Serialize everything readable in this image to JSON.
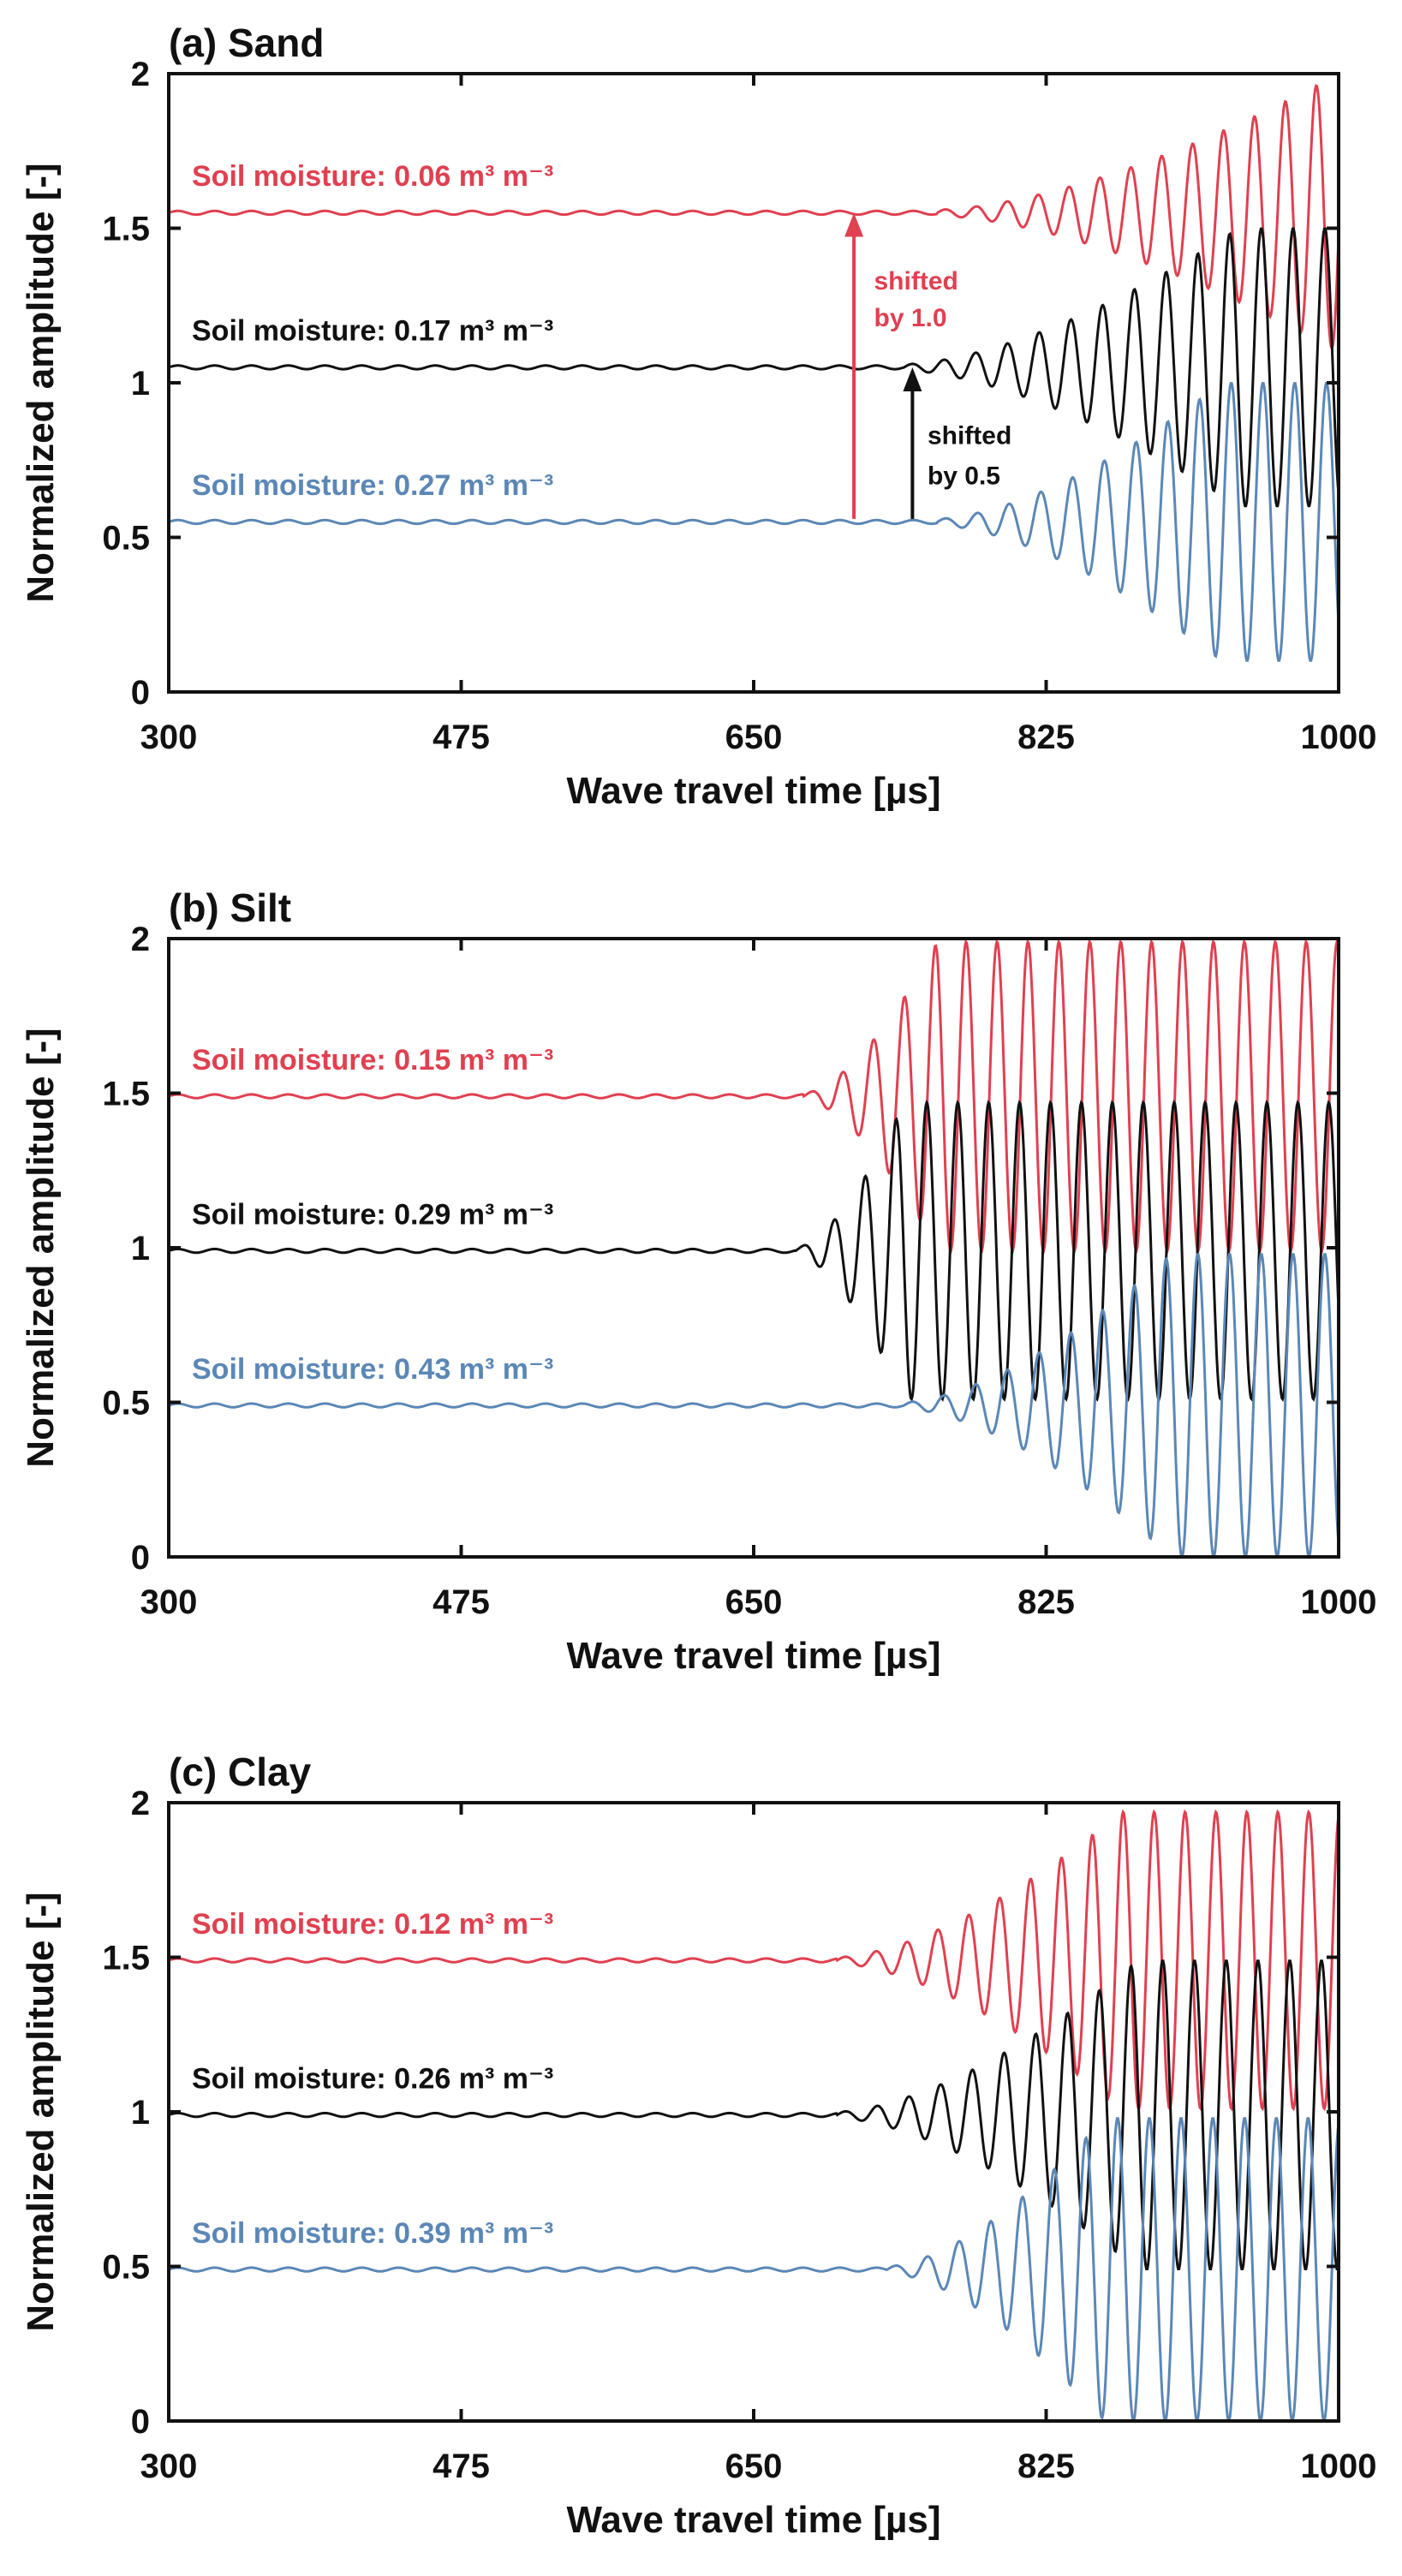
{
  "colors": {
    "red": "#e04050",
    "black": "#111111",
    "blue": "#5b87b6"
  },
  "chart_data": [
    {
      "type": "line",
      "title": "(a) Sand",
      "xlabel": "Wave travel time [µs]",
      "ylabel": "Normalized amplitude [-]",
      "xlim": [
        300,
        1000
      ],
      "ylim": [
        0,
        2
      ],
      "xticks": [
        300,
        475,
        650,
        825,
        1000
      ],
      "yticks": [
        0,
        0.5,
        1,
        1.5,
        2
      ],
      "xtick_labels": [
        "300",
        "475",
        "650",
        "825",
        "1000"
      ],
      "ytick_labels": [
        "0",
        "0.5",
        "1",
        "1.5",
        "2"
      ],
      "series": [
        {
          "name": "Soil moisture: 0.06",
          "unit": "m³ m⁻³",
          "color": "red",
          "baseline": 1.55,
          "onset": 760,
          "grow_end": 1000,
          "max_amp": 0.45,
          "period": 18.5,
          "label_y": 1.67
        },
        {
          "name": "Soil moisture: 0.17",
          "unit": "m³ m⁻³",
          "color": "black",
          "baseline": 1.05,
          "onset": 740,
          "grow_end": 940,
          "max_amp": 0.45,
          "period": 19,
          "label_y": 1.17
        },
        {
          "name": "Soil moisture: 0.27",
          "unit": "m³ m⁻³",
          "color": "blue",
          "baseline": 0.55,
          "onset": 760,
          "grow_end": 930,
          "max_amp": 0.45,
          "period": 19,
          "label_y": 0.67
        }
      ],
      "annotations": [
        {
          "color": "red",
          "x": 710,
          "y_from": 0.56,
          "y_to": 1.55,
          "lines": [
            "shifted",
            "by 1.0"
          ],
          "text_x": 722,
          "text_y": [
            1.33,
            1.21
          ]
        },
        {
          "color": "black",
          "x": 745,
          "y_from": 0.56,
          "y_to": 1.05,
          "lines": [
            "shifted",
            "by 0.5"
          ],
          "text_x": 754,
          "text_y": [
            0.83,
            0.7
          ]
        }
      ]
    },
    {
      "type": "line",
      "title": "(b) Silt",
      "xlabel": "Wave travel time [µs]",
      "ylabel": "Normalized amplitude [-]",
      "xlim": [
        300,
        1000
      ],
      "ylim": [
        0,
        2
      ],
      "xticks": [
        300,
        475,
        650,
        825,
        1000
      ],
      "yticks": [
        0,
        0.5,
        1,
        1.5,
        2
      ],
      "xtick_labels": [
        "300",
        "475",
        "650",
        "825",
        "1000"
      ],
      "ytick_labels": [
        "0",
        "0.5",
        "1",
        "1.5",
        "2"
      ],
      "series": [
        {
          "name": "Soil moisture: 0.15",
          "unit": "m³ m⁻³",
          "color": "red",
          "baseline": 1.49,
          "onset": 680,
          "grow_end": 760,
          "max_amp": 0.5,
          "period": 18.5,
          "label_y": 1.61
        },
        {
          "name": "Soil moisture: 0.29",
          "unit": "m³ m⁻³",
          "color": "black",
          "baseline": 0.99,
          "onset": 675,
          "grow_end": 740,
          "max_amp": 0.48,
          "period": 18.5,
          "label_y": 1.11
        },
        {
          "name": "Soil moisture: 0.43",
          "unit": "m³ m⁻³",
          "color": "blue",
          "baseline": 0.49,
          "onset": 740,
          "grow_end": 900,
          "max_amp": 0.49,
          "period": 19,
          "label_y": 0.61
        }
      ],
      "annotations": []
    },
    {
      "type": "line",
      "title": "(c) Clay",
      "xlabel": "Wave travel time [µs]",
      "ylabel": "Normalized amplitude [-]",
      "xlim": [
        300,
        1000
      ],
      "ylim": [
        0,
        2
      ],
      "xticks": [
        300,
        475,
        650,
        825,
        1000
      ],
      "yticks": [
        0,
        0.5,
        1,
        1.5,
        2
      ],
      "xtick_labels": [
        "300",
        "475",
        "650",
        "825",
        "1000"
      ],
      "ytick_labels": [
        "0",
        "0.5",
        "1",
        "1.5",
        "2"
      ],
      "series": [
        {
          "name": "Soil moisture: 0.12",
          "unit": "m³ m⁻³",
          "color": "red",
          "baseline": 1.49,
          "onset": 700,
          "grow_end": 870,
          "max_amp": 0.48,
          "period": 18.5,
          "label_y": 1.61
        },
        {
          "name": "Soil moisture: 0.26",
          "unit": "m³ m⁻³",
          "color": "black",
          "baseline": 0.99,
          "onset": 700,
          "grow_end": 880,
          "max_amp": 0.5,
          "period": 19,
          "label_y": 1.11
        },
        {
          "name": "Soil moisture: 0.39",
          "unit": "m³ m⁻³",
          "color": "blue",
          "baseline": 0.49,
          "onset": 730,
          "grow_end": 860,
          "max_amp": 0.49,
          "period": 19,
          "label_y": 0.61
        }
      ],
      "annotations": []
    }
  ]
}
